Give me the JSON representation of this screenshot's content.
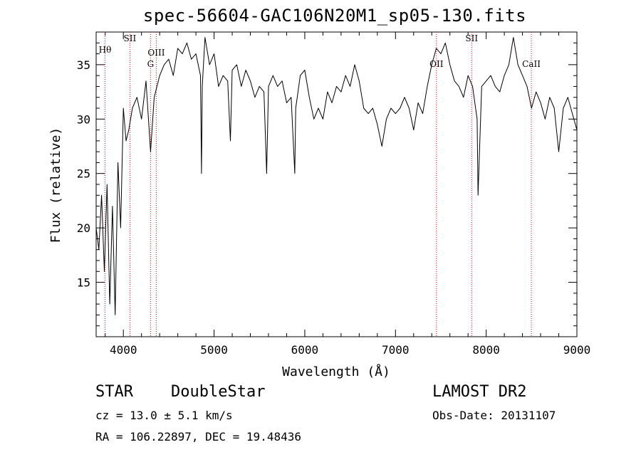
{
  "chart_data": {
    "type": "line",
    "title": "spec-56604-GAC106N20M1_sp05-130.fits",
    "xlabel": "Wavelength (Å)",
    "ylabel": "Flux (relative)",
    "xlim": [
      3700,
      9000
    ],
    "ylim": [
      10.0,
      38.0
    ],
    "xticks": [
      4000,
      5000,
      6000,
      7000,
      8000,
      9000
    ],
    "yticks": [
      15,
      20,
      25,
      30,
      35
    ],
    "series": [
      {
        "x": [
          3700,
          3730,
          3760,
          3790,
          3820,
          3850,
          3880,
          3910,
          3940,
          3970,
          4000,
          4030,
          4060,
          4100,
          4150,
          4200,
          4250,
          4300,
          4340,
          4400,
          4450,
          4500,
          4550,
          4600,
          4650,
          4700,
          4750,
          4800,
          4850,
          4861,
          4870,
          4900,
          4950,
          5000,
          5050,
          5100,
          5150,
          5180,
          5200,
          5250,
          5300,
          5350,
          5400,
          5450,
          5500,
          5550,
          5580,
          5600,
          5650,
          5700,
          5750,
          5800,
          5850,
          5890,
          5900,
          5950,
          6000,
          6050,
          6100,
          6150,
          6200,
          6250,
          6300,
          6350,
          6400,
          6450,
          6500,
          6550,
          6600,
          6650,
          6700,
          6750,
          6800,
          6850,
          6900,
          6950,
          7000,
          7050,
          7100,
          7150,
          7200,
          7250,
          7300,
          7350,
          7400,
          7450,
          7500,
          7550,
          7600,
          7650,
          7700,
          7750,
          7800,
          7850,
          7900,
          7910,
          7950,
          8000,
          8050,
          8100,
          8150,
          8200,
          8250,
          8300,
          8350,
          8400,
          8450,
          8500,
          8550,
          8600,
          8650,
          8700,
          8750,
          8800,
          8850,
          8900,
          8950,
          9000
        ],
        "y": [
          20.0,
          18.0,
          23.0,
          16.0,
          24.0,
          13.0,
          22.0,
          12.0,
          26.0,
          20.0,
          31.0,
          28.0,
          29.0,
          31.0,
          32.0,
          30.0,
          33.5,
          27.0,
          32.0,
          34.0,
          35.0,
          35.5,
          34.0,
          36.5,
          36.0,
          37.0,
          35.5,
          36.0,
          34.0,
          25.0,
          33.0,
          37.5,
          35.0,
          36.0,
          33.0,
          34.0,
          33.5,
          28.0,
          34.5,
          35.0,
          33.0,
          34.5,
          33.5,
          32.0,
          33.0,
          32.5,
          25.0,
          33.0,
          34.0,
          33.0,
          33.5,
          31.5,
          32.0,
          25.0,
          31.0,
          34.0,
          34.5,
          32.0,
          30.0,
          31.0,
          30.0,
          32.5,
          31.5,
          33.0,
          32.5,
          34.0,
          33.0,
          35.0,
          33.5,
          31.0,
          30.5,
          31.0,
          29.5,
          27.5,
          30.0,
          31.0,
          30.5,
          31.0,
          32.0,
          31.0,
          29.0,
          31.5,
          30.5,
          33.0,
          35.0,
          36.5,
          36.0,
          37.0,
          35.0,
          33.5,
          33.0,
          32.0,
          34.0,
          33.0,
          30.0,
          23.0,
          33.0,
          33.5,
          34.0,
          33.0,
          32.5,
          34.0,
          35.0,
          37.5,
          35.0,
          34.0,
          33.0,
          31.0,
          32.5,
          31.5,
          30.0,
          32.0,
          31.0,
          27.0,
          31.0,
          32.0,
          30.5,
          29.0
        ]
      }
    ],
    "lines": [
      {
        "x": 3798,
        "label": "Hθ"
      },
      {
        "x": 4072,
        "label": "SII"
      },
      {
        "x": 4300,
        "label": "G"
      },
      {
        "x": 4363,
        "label": "OIII"
      },
      {
        "x": 7452,
        "label": "OII"
      },
      {
        "x": 7840,
        "label": "SII"
      },
      {
        "x": 8498,
        "label": "CaII"
      }
    ],
    "line_color": "#ff0000",
    "grid": false
  },
  "info": {
    "class": "STAR",
    "subclass": "DoubleStar",
    "survey": "LAMOST DR2",
    "cz": "cz = 13.0 ± 5.1 km/s",
    "obs_date": "Obs-Date: 20131107",
    "radec": "RA = 106.22897, DEC =  19.48436"
  }
}
